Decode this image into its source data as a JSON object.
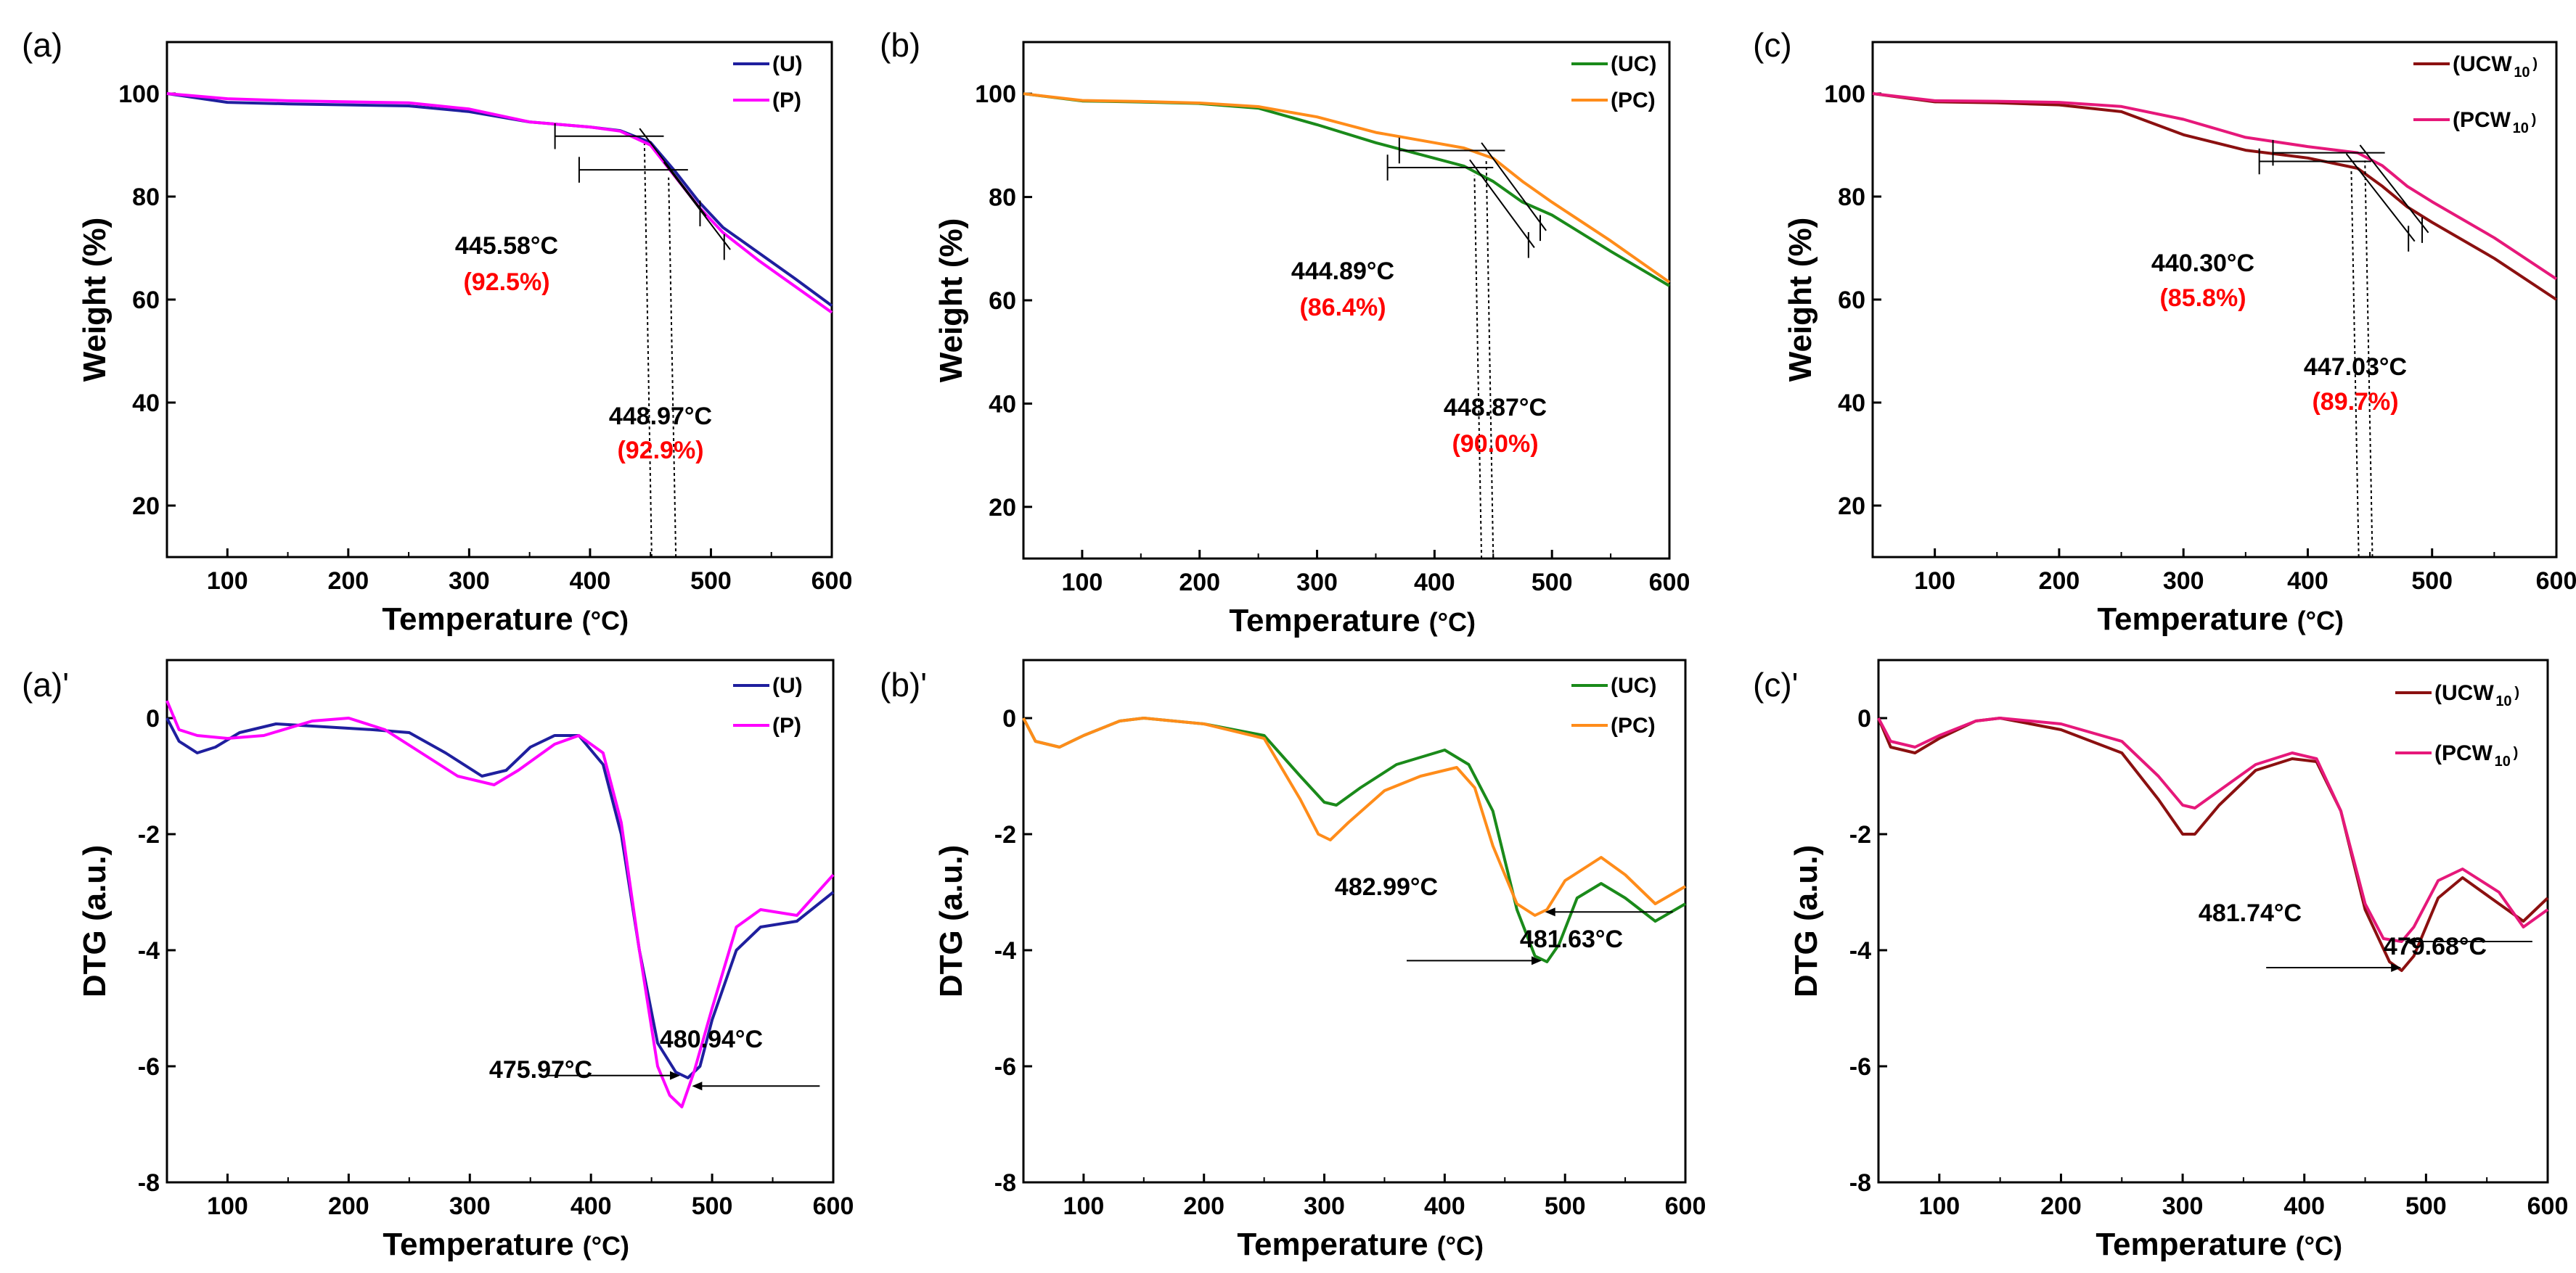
{
  "figure": {
    "colors": {
      "U": "#1f1f9e",
      "P": "#ff00ff",
      "UC": "#1a8a1a",
      "PC": "#ff8c1a",
      "UCW": "#8b1010",
      "PCW": "#e6187a"
    }
  },
  "chart_data": [
    {
      "id": "a",
      "panel": "(a)",
      "type": "line",
      "xlabel": "Temperature",
      "xunit": "(°C)",
      "ylabel": "Weight (%)",
      "xlim": [
        50,
        600
      ],
      "ylim": [
        10,
        110
      ],
      "xticks": [
        100,
        200,
        300,
        400,
        500,
        600
      ],
      "yticks": [
        20,
        40,
        60,
        80,
        100
      ],
      "series": [
        {
          "name": "(U)",
          "color": "#1f1f9e",
          "x": [
            50,
            100,
            150,
            200,
            250,
            300,
            350,
            400,
            425,
            450,
            470,
            490,
            510,
            540,
            570,
            600
          ],
          "y": [
            100,
            98.3,
            98,
            97.8,
            97.6,
            96.5,
            94.5,
            93.5,
            92.8,
            90.5,
            85,
            79,
            74,
            69,
            64,
            58.8
          ]
        },
        {
          "name": "(P)",
          "color": "#ff00ff",
          "x": [
            50,
            100,
            150,
            200,
            250,
            300,
            350,
            400,
            425,
            450,
            470,
            490,
            510,
            540,
            570,
            600
          ],
          "y": [
            100,
            99,
            98.6,
            98.4,
            98.2,
            97,
            94.5,
            93.5,
            92.7,
            90,
            84,
            78,
            73,
            67.5,
            62.5,
            57.5
          ]
        }
      ],
      "annotations": [
        {
          "temp": "445.58°C",
          "pct": "(92.5%)",
          "x": 451
        },
        {
          "temp": "448.97°C",
          "pct": "(92.9%)",
          "x": 471
        }
      ]
    },
    {
      "id": "b",
      "panel": "(b)",
      "type": "line",
      "xlabel": "Temperature",
      "xunit": "(°C)",
      "ylabel": "Weight (%)",
      "xlim": [
        50,
        600
      ],
      "ylim": [
        10,
        110
      ],
      "xticks": [
        100,
        200,
        300,
        400,
        500,
        600
      ],
      "yticks": [
        20,
        40,
        60,
        80,
        100
      ],
      "series": [
        {
          "name": "(UC)",
          "color": "#1a8a1a",
          "x": [
            50,
            100,
            150,
            200,
            250,
            300,
            350,
            400,
            425,
            450,
            475,
            500,
            550,
            600
          ],
          "y": [
            100,
            98.6,
            98.4,
            98.1,
            97.2,
            94,
            90.5,
            87.5,
            86,
            83,
            79,
            76.5,
            69.5,
            62.8
          ]
        },
        {
          "name": "(PC)",
          "color": "#ff8c1a",
          "x": [
            50,
            100,
            150,
            200,
            250,
            300,
            350,
            400,
            425,
            450,
            475,
            500,
            550,
            600
          ],
          "y": [
            100,
            98.7,
            98.5,
            98.2,
            97.5,
            95.5,
            92.5,
            90.5,
            89.5,
            87.5,
            83,
            79,
            71.5,
            63.5
          ]
        }
      ],
      "annotations": [
        {
          "temp": "444.89°C",
          "pct": "(86.4%)",
          "x": 440
        },
        {
          "temp": "448.87°C",
          "pct": "(90.0%)",
          "x": 450
        }
      ]
    },
    {
      "id": "c",
      "panel": "(c)",
      "type": "line",
      "xlabel": "Temperature",
      "xunit": "(°C)",
      "ylabel": "Weight (%)",
      "xlim": [
        50,
        600
      ],
      "ylim": [
        10,
        110
      ],
      "xticks": [
        100,
        200,
        300,
        400,
        500,
        600
      ],
      "yticks": [
        20,
        40,
        60,
        80,
        100
      ],
      "series": [
        {
          "name": "(UCW",
          "sub": "10",
          "close": ")",
          "color": "#8b1010",
          "x": [
            50,
            100,
            150,
            200,
            250,
            300,
            350,
            400,
            440,
            460,
            480,
            500,
            550,
            600
          ],
          "y": [
            100,
            98.4,
            98.2,
            97.8,
            96.5,
            92,
            89,
            87.5,
            85.5,
            82,
            78,
            75,
            68,
            60
          ]
        },
        {
          "name": "(PCW",
          "sub": "10",
          "close": ")",
          "color": "#e6187a",
          "x": [
            50,
            100,
            150,
            200,
            250,
            300,
            350,
            400,
            440,
            460,
            480,
            500,
            550,
            600
          ],
          "y": [
            100,
            98.6,
            98.5,
            98.3,
            97.5,
            95,
            91.5,
            89.7,
            88.5,
            86,
            82,
            79,
            72,
            64
          ]
        }
      ],
      "annotations": [
        {
          "temp": "440.30°C",
          "pct": "(85.8%)",
          "x": 441
        },
        {
          "temp": "447.03°C",
          "pct": "(89.7%)",
          "x": 452
        }
      ]
    },
    {
      "id": "a2",
      "panel": "(a)'",
      "type": "line",
      "xlabel": "Temperature",
      "xunit": "(°C)",
      "ylabel": "DTG (a.u.)",
      "xlim": [
        50,
        600
      ],
      "ylim": [
        -8,
        1
      ],
      "xticks": [
        100,
        200,
        300,
        400,
        500,
        600
      ],
      "yticks": [
        0,
        -2,
        -4,
        -6,
        -8
      ],
      "series": [
        {
          "name": "(U)",
          "color": "#1f1f9e",
          "x": [
            50,
            60,
            75,
            90,
            110,
            140,
            180,
            220,
            250,
            280,
            310,
            330,
            350,
            370,
            390,
            410,
            425,
            440,
            455,
            470,
            480,
            490,
            500,
            520,
            540,
            570,
            600
          ],
          "y": [
            0,
            -0.4,
            -0.6,
            -0.5,
            -0.25,
            -0.1,
            -0.15,
            -0.2,
            -0.25,
            -0.6,
            -1,
            -0.9,
            -0.5,
            -0.3,
            -0.3,
            -0.8,
            -2,
            -4,
            -5.6,
            -6.1,
            -6.2,
            -6,
            -5.2,
            -4,
            -3.6,
            -3.5,
            -3
          ]
        },
        {
          "name": "(P)",
          "color": "#ff00ff",
          "x": [
            50,
            60,
            75,
            100,
            130,
            170,
            200,
            230,
            260,
            290,
            320,
            340,
            370,
            390,
            410,
            425,
            440,
            455,
            465,
            475,
            485,
            500,
            520,
            540,
            570,
            600
          ],
          "y": [
            0.3,
            -0.2,
            -0.3,
            -0.35,
            -0.3,
            -0.05,
            0,
            -0.2,
            -0.6,
            -1,
            -1.15,
            -0.9,
            -0.45,
            -0.3,
            -0.6,
            -1.8,
            -4,
            -6,
            -6.5,
            -6.7,
            -6.1,
            -5,
            -3.6,
            -3.3,
            -3.4,
            -2.7
          ]
        }
      ],
      "annotations": [
        {
          "temp": "475.97°C",
          "x": 476
        },
        {
          "temp": "480.94°C",
          "x": 481
        }
      ]
    },
    {
      "id": "b2",
      "panel": "(b)'",
      "type": "line",
      "xlabel": "Temperature",
      "xunit": "(°C)",
      "ylabel": "DTG (a.u.)",
      "xlim": [
        50,
        600
      ],
      "ylim": [
        -8,
        1
      ],
      "xticks": [
        100,
        200,
        300,
        400,
        500,
        600
      ],
      "yticks": [
        0,
        -2,
        -4,
        -6,
        -8
      ],
      "series": [
        {
          "name": "(UC)",
          "color": "#1a8a1a",
          "x": [
            50,
            60,
            80,
            100,
            130,
            150,
            200,
            250,
            280,
            300,
            310,
            330,
            360,
            400,
            420,
            440,
            460,
            475,
            485,
            495,
            510,
            530,
            550,
            575,
            600
          ],
          "y": [
            0,
            -0.4,
            -0.5,
            -0.3,
            -0.05,
            0,
            -0.1,
            -0.3,
            -1,
            -1.45,
            -1.5,
            -1.2,
            -0.8,
            -0.55,
            -0.8,
            -1.6,
            -3.3,
            -4.1,
            -4.2,
            -3.9,
            -3.1,
            -2.85,
            -3.1,
            -3.5,
            -3.2
          ]
        },
        {
          "name": "(PC)",
          "color": "#ff8c1a",
          "x": [
            50,
            60,
            80,
            100,
            130,
            150,
            200,
            250,
            280,
            295,
            305,
            320,
            350,
            380,
            410,
            425,
            440,
            460,
            475,
            485,
            500,
            530,
            550,
            575,
            600
          ],
          "y": [
            0,
            -0.4,
            -0.5,
            -0.3,
            -0.05,
            0,
            -0.1,
            -0.35,
            -1.4,
            -2,
            -2.1,
            -1.8,
            -1.25,
            -1,
            -0.85,
            -1.2,
            -2.2,
            -3.2,
            -3.4,
            -3.3,
            -2.8,
            -2.4,
            -2.7,
            -3.2,
            -2.9
          ]
        }
      ],
      "annotations": [
        {
          "temp": "482.99°C",
          "x": 483
        },
        {
          "temp": "481.63°C",
          "x": 481
        }
      ]
    },
    {
      "id": "c2",
      "panel": "(c)'",
      "type": "line",
      "xlabel": "Temperature",
      "xunit": "(°C)",
      "ylabel": "DTG (a.u.)",
      "xlim": [
        50,
        600
      ],
      "ylim": [
        -8,
        1
      ],
      "xticks": [
        100,
        200,
        300,
        400,
        500,
        600
      ],
      "yticks": [
        0,
        -2,
        -4,
        -6,
        -8
      ],
      "series": [
        {
          "name": "(UCW",
          "sub": "10",
          "close": ")",
          "color": "#8b1010",
          "x": [
            50,
            60,
            80,
            100,
            130,
            150,
            200,
            250,
            280,
            300,
            310,
            330,
            360,
            390,
            410,
            430,
            450,
            470,
            480,
            490,
            510,
            530,
            560,
            580,
            600
          ],
          "y": [
            0,
            -0.5,
            -0.6,
            -0.35,
            -0.05,
            0,
            -0.2,
            -0.6,
            -1.4,
            -2,
            -2,
            -1.5,
            -0.9,
            -0.7,
            -0.75,
            -1.6,
            -3.3,
            -4.2,
            -4.35,
            -4.1,
            -3.1,
            -2.75,
            -3.2,
            -3.5,
            -3.1
          ]
        },
        {
          "name": "(PCW",
          "sub": "10",
          "close": ")",
          "color": "#e6187a",
          "x": [
            50,
            60,
            80,
            100,
            130,
            150,
            200,
            250,
            280,
            300,
            310,
            330,
            360,
            390,
            410,
            430,
            450,
            465,
            480,
            490,
            510,
            530,
            560,
            580,
            600
          ],
          "y": [
            0,
            -0.4,
            -0.5,
            -0.3,
            -0.05,
            0,
            -0.1,
            -0.4,
            -1,
            -1.5,
            -1.55,
            -1.25,
            -0.8,
            -0.6,
            -0.7,
            -1.6,
            -3.2,
            -3.8,
            -3.85,
            -3.6,
            -2.8,
            -2.6,
            -3,
            -3.6,
            -3.3
          ]
        }
      ],
      "annotations": [
        {
          "temp": "481.74°C",
          "x": 482
        },
        {
          "temp": "479.68°C",
          "x": 480
        }
      ]
    }
  ]
}
